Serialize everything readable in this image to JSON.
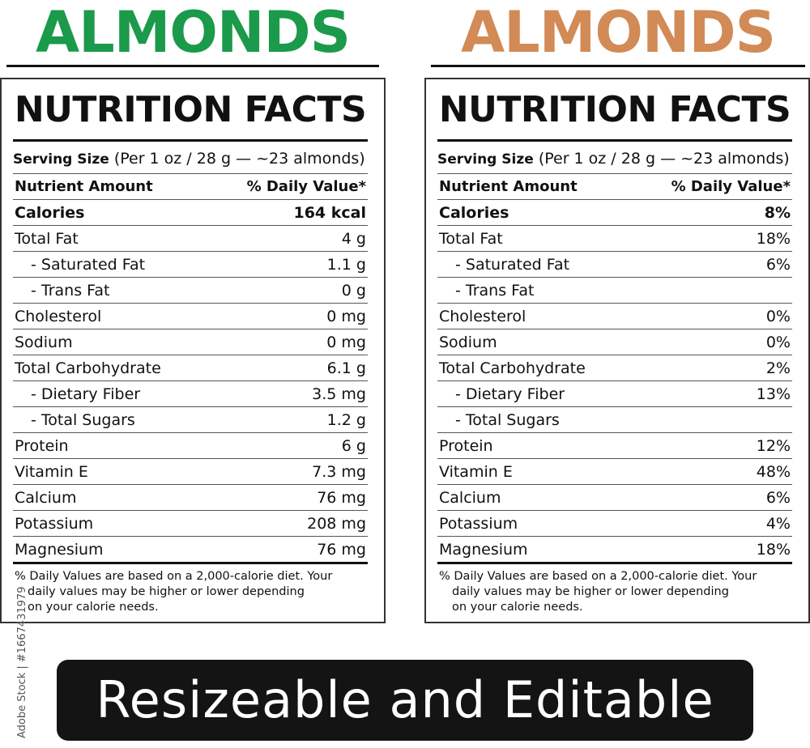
{
  "colors": {
    "green": "#1a9a4a",
    "tan": "#d28a56",
    "ink": "#111111",
    "banner": "#141414"
  },
  "labels": [
    {
      "title": "ALMONDS",
      "heading": "NUTRITION FACTS",
      "serving_label": "Serving Size",
      "serving_value": "(Per 1 oz / 28 g — ~23 almonds)",
      "col_nutrient": "Nutrient Amount",
      "col_value": "% Daily Value*",
      "rows": [
        {
          "name": "Calories",
          "value": "164 kcal"
        },
        {
          "name": "Total Fat",
          "value": "4 g"
        },
        {
          "name": "- Saturated Fat",
          "value": "1.1 g"
        },
        {
          "name": "- Trans Fat",
          "value": "0 g"
        },
        {
          "name": "Cholesterol",
          "value": "0 mg"
        },
        {
          "name": "Sodium",
          "value": "0 mg"
        },
        {
          "name": "Total Carbohydrate",
          "value": "6.1 g"
        },
        {
          "name": "- Dietary Fiber",
          "value": "3.5 mg"
        },
        {
          "name": "- Total Sugars",
          "value": "1.2 g"
        },
        {
          "name": "Protein",
          "value": "6 g"
        },
        {
          "name": "Vitamin E",
          "value": "7.3 mg"
        },
        {
          "name": "Calcium",
          "value": "76 mg"
        },
        {
          "name": "Potassium",
          "value": "208 mg"
        },
        {
          "name": "Magnesium",
          "value": "76 mg"
        }
      ],
      "footnote": [
        "% Daily Values are based on a 2,000-calorie diet. Your",
        "daily values may be higher or lower depending",
        "on your calorie needs."
      ]
    },
    {
      "title": "ALMONDS",
      "heading": "NUTRITION FACTS",
      "serving_label": "Serving Size",
      "serving_value": "(Per 1 oz / 28 g — ~23 almonds)",
      "col_nutrient": "Nutrient Amount",
      "col_value": "% Daily Value*",
      "rows": [
        {
          "name": "Calories",
          "value": "8%"
        },
        {
          "name": "Total Fat",
          "value": "18%"
        },
        {
          "name": "- Saturated Fat",
          "value": "6%"
        },
        {
          "name": "- Trans Fat",
          "value": ""
        },
        {
          "name": "Cholesterol",
          "value": "0%"
        },
        {
          "name": "Sodium",
          "value": "0%"
        },
        {
          "name": "Total Carbohydrate",
          "value": "2%"
        },
        {
          "name": "- Dietary Fiber",
          "value": "13%"
        },
        {
          "name": "- Total Sugars",
          "value": ""
        },
        {
          "name": "Protein",
          "value": "12%"
        },
        {
          "name": "Vitamin E",
          "value": "48%"
        },
        {
          "name": "Calcium",
          "value": "6%"
        },
        {
          "name": "Potassium",
          "value": "4%"
        },
        {
          "name": "Magnesium",
          "value": "18%"
        }
      ],
      "footnote": [
        "% Daily Values are based on a 2,000-calorie diet. Your",
        "daily values may be higher or lower depending",
        "on your calorie needs."
      ]
    }
  ],
  "banner": "Resizeable and Editable",
  "stock_id": "Adobe Stock | #1667431979"
}
